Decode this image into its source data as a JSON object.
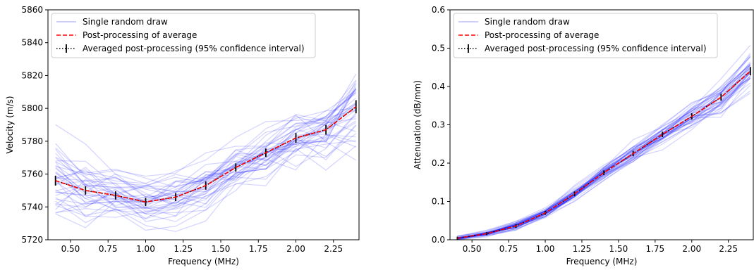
{
  "chart_data": [
    {
      "type": "line",
      "xlabel": "Frequency (MHz)",
      "ylabel": "Velocity (m/s)",
      "xlim": [
        0.35,
        2.42
      ],
      "ylim": [
        5720,
        5860
      ],
      "xticks": [
        0.5,
        0.75,
        1.0,
        1.25,
        1.5,
        1.75,
        2.0,
        2.25
      ],
      "xtick_labels": [
        "0.50",
        "0.75",
        "1.00",
        "1.25",
        "1.50",
        "1.75",
        "2.00",
        "2.25"
      ],
      "yticks": [
        5720,
        5740,
        5760,
        5780,
        5800,
        5820,
        5840,
        5860
      ],
      "ytick_labels": [
        "5720",
        "5740",
        "5760",
        "5780",
        "5800",
        "5820",
        "5840",
        "5860"
      ],
      "legend": {
        "placement": "top-left",
        "entries": [
          "Single random draw",
          "Post-processing of average",
          "Averaged post-processing (95% confidence interval)"
        ]
      },
      "x": [
        0.4,
        0.6,
        0.8,
        1.0,
        1.2,
        1.4,
        1.6,
        1.8,
        2.0,
        2.2,
        2.4
      ],
      "series": [
        {
          "role": "average",
          "color": "#ff0000",
          "values": [
            5756,
            5750,
            5747,
            5743,
            5746,
            5753,
            5764,
            5773,
            5782,
            5787,
            5801
          ]
        },
        {
          "role": "averaged_ci",
          "color": "#000000",
          "values": [
            5756,
            5750,
            5747,
            5743,
            5746,
            5753,
            5764,
            5773,
            5782,
            5787,
            5801
          ],
          "ci_halfwidth": [
            3,
            2.5,
            2.5,
            2.5,
            2.5,
            2.5,
            2.5,
            2.5,
            3,
            3,
            4
          ]
        },
        {
          "role": "random_draws",
          "color": "#0000ff",
          "draw_count": 40,
          "spread": [
            20,
            16,
            14,
            14,
            14,
            14,
            14,
            14,
            15,
            17,
            22
          ]
        }
      ]
    },
    {
      "type": "line",
      "xlabel": "Frequency (MHz)",
      "ylabel": "Attenuation (dB/mm)",
      "xlim": [
        0.35,
        2.42
      ],
      "ylim": [
        0.0,
        0.6
      ],
      "xticks": [
        0.5,
        0.75,
        1.0,
        1.25,
        1.5,
        1.75,
        2.0,
        2.25
      ],
      "xtick_labels": [
        "0.50",
        "0.75",
        "1.00",
        "1.25",
        "1.50",
        "1.75",
        "2.00",
        "2.25"
      ],
      "yticks": [
        0.0,
        0.1,
        0.2,
        0.3,
        0.4,
        0.5,
        0.6
      ],
      "ytick_labels": [
        "0.0",
        "0.1",
        "0.2",
        "0.3",
        "0.4",
        "0.5",
        "0.6"
      ],
      "legend": {
        "placement": "top-left",
        "entries": [
          "Single random draw",
          "Post-processing of average",
          "Averaged post-processing (95% confidence interval)"
        ]
      },
      "x": [
        0.4,
        0.6,
        0.8,
        1.0,
        1.2,
        1.4,
        1.6,
        1.8,
        2.0,
        2.2,
        2.4
      ],
      "series": [
        {
          "role": "average",
          "color": "#ff0000",
          "values": [
            0.004,
            0.016,
            0.036,
            0.07,
            0.12,
            0.175,
            0.225,
            0.275,
            0.322,
            0.372,
            0.44
          ]
        },
        {
          "role": "averaged_ci",
          "color": "#000000",
          "values": [
            0.004,
            0.016,
            0.036,
            0.07,
            0.12,
            0.175,
            0.225,
            0.275,
            0.322,
            0.372,
            0.44
          ],
          "ci_halfwidth": [
            0.004,
            0.004,
            0.005,
            0.005,
            0.006,
            0.006,
            0.007,
            0.007,
            0.008,
            0.009,
            0.011
          ]
        },
        {
          "role": "random_draws",
          "color": "#0000ff",
          "draw_count": 40,
          "spread": [
            0.004,
            0.006,
            0.01,
            0.012,
            0.016,
            0.018,
            0.022,
            0.026,
            0.03,
            0.034,
            0.045
          ]
        }
      ]
    }
  ]
}
